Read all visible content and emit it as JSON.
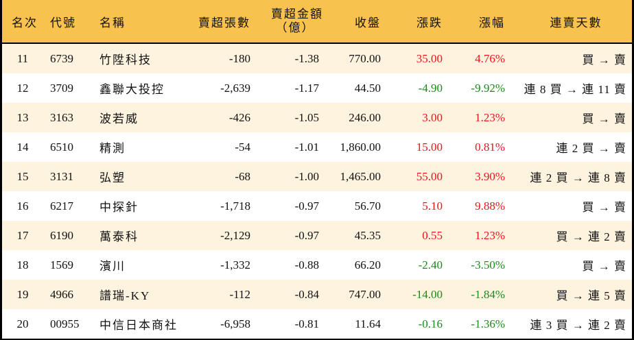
{
  "colors": {
    "header_bg": "#F8C24F",
    "row_odd_bg": "#FDF3DF",
    "row_even_bg": "#FFFFFF",
    "up": "#E8151B",
    "down": "#1A8A1A"
  },
  "header": {
    "rank": "名次",
    "code": "代號",
    "name": "名稱",
    "net_sell_lots": "賣超張數",
    "net_sell_amount_line1": "賣超金額",
    "net_sell_amount_line2": "（億）",
    "close": "收盤",
    "change": "漲跌",
    "change_pct": "漲幅",
    "streak": "連賣天數"
  },
  "rows": [
    {
      "rank": "11",
      "code": "6739",
      "name": "竹陞科技",
      "lots": "-180",
      "amount": "-1.38",
      "close": "770.00",
      "change": "35.00",
      "pct": "4.76%",
      "dir": "up",
      "streak": "買 → 賣"
    },
    {
      "rank": "12",
      "code": "3709",
      "name": "鑫聯大投控",
      "lots": "-2,639",
      "amount": "-1.17",
      "close": "44.50",
      "change": "-4.90",
      "pct": "-9.92%",
      "dir": "down",
      "streak": "連 8 買 → 連 11 賣"
    },
    {
      "rank": "13",
      "code": "3163",
      "name": "波若威",
      "lots": "-426",
      "amount": "-1.05",
      "close": "246.00",
      "change": "3.00",
      "pct": "1.23%",
      "dir": "up",
      "streak": "買 → 賣"
    },
    {
      "rank": "14",
      "code": "6510",
      "name": "精測",
      "lots": "-54",
      "amount": "-1.01",
      "close": "1,860.00",
      "change": "15.00",
      "pct": "0.81%",
      "dir": "up",
      "streak": "連 2 買 → 賣"
    },
    {
      "rank": "15",
      "code": "3131",
      "name": "弘塑",
      "lots": "-68",
      "amount": "-1.00",
      "close": "1,465.00",
      "change": "55.00",
      "pct": "3.90%",
      "dir": "up",
      "streak": "連 2 買 → 連 8 賣"
    },
    {
      "rank": "16",
      "code": "6217",
      "name": "中探針",
      "lots": "-1,718",
      "amount": "-0.97",
      "close": "56.70",
      "change": "5.10",
      "pct": "9.88%",
      "dir": "up",
      "streak": "買 → 賣"
    },
    {
      "rank": "17",
      "code": "6190",
      "name": "萬泰科",
      "lots": "-2,129",
      "amount": "-0.97",
      "close": "45.35",
      "change": "0.55",
      "pct": "1.23%",
      "dir": "up",
      "streak": "買 → 連 2 賣"
    },
    {
      "rank": "18",
      "code": "1569",
      "name": "濱川",
      "lots": "-1,332",
      "amount": "-0.88",
      "close": "66.20",
      "change": "-2.40",
      "pct": "-3.50%",
      "dir": "down",
      "streak": "買 → 賣"
    },
    {
      "rank": "19",
      "code": "4966",
      "name": "譜瑞-KY",
      "lots": "-112",
      "amount": "-0.84",
      "close": "747.00",
      "change": "-14.00",
      "pct": "-1.84%",
      "dir": "down",
      "streak": "買 → 連 5 賣"
    },
    {
      "rank": "20",
      "code": "00955",
      "name": "中信日本商社",
      "lots": "-6,958",
      "amount": "-0.81",
      "close": "11.64",
      "change": "-0.16",
      "pct": "-1.36%",
      "dir": "down",
      "streak": "連 3 買 → 連 2 賣"
    }
  ]
}
